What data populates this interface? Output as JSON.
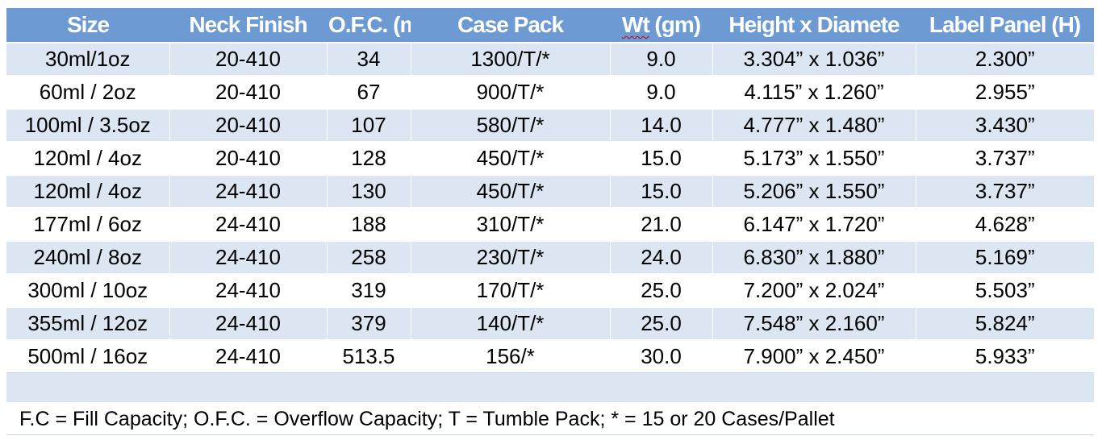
{
  "table": {
    "headers": {
      "size": "Size",
      "neck_finish": "Neck Finish",
      "ofc": "O.F.C. (m",
      "case_pack": "Case Pack",
      "wt_a": "Wt",
      "wt_b": " (gm)",
      "height_diameter": "Height x Diamete",
      "label_panel": "Label Panel (H)"
    },
    "rows": [
      {
        "size": "30ml/1oz",
        "neck": "20-410",
        "ofc": "34",
        "case_pack": "1300/T/*",
        "wt": "9.0",
        "dims": "3.304” x 1.036”",
        "label": "2.300”"
      },
      {
        "size": "60ml / 2oz",
        "neck": "20-410",
        "ofc": "67",
        "case_pack": "900/T/*",
        "wt": "9.0",
        "dims": "4.115” x 1.260”",
        "label": "2.955”"
      },
      {
        "size": "100ml / 3.5oz",
        "neck": "20-410",
        "ofc": "107",
        "case_pack": "580/T/*",
        "wt": "14.0",
        "dims": "4.777” x 1.480”",
        "label": "3.430”"
      },
      {
        "size": "120ml / 4oz",
        "neck": "20-410",
        "ofc": "128",
        "case_pack": "450/T/*",
        "wt": "15.0",
        "dims": "5.173” x 1.550”",
        "label": "3.737”"
      },
      {
        "size": "120ml / 4oz",
        "neck": "24-410",
        "ofc": "130",
        "case_pack": "450/T/*",
        "wt": "15.0",
        "dims": "5.206” x 1.550”",
        "label": "3.737”"
      },
      {
        "size": "177ml / 6oz",
        "neck": "24-410",
        "ofc": "188",
        "case_pack": "310/T/*",
        "wt": "21.0",
        "dims": "6.147” x 1.720”",
        "label": "4.628”"
      },
      {
        "size": "240ml / 8oz",
        "neck": "24-410",
        "ofc": "258",
        "case_pack": "230/T/*",
        "wt": "24.0",
        "dims": "6.830” x 1.880”",
        "label": "5.169”"
      },
      {
        "size": "300ml / 10oz",
        "neck": "24-410",
        "ofc": "319",
        "case_pack": "170/T/*",
        "wt": "25.0",
        "dims": "7.200” x 2.024”",
        "label": "5.503”"
      },
      {
        "size": "355ml / 12oz",
        "neck": "24-410",
        "ofc": "379",
        "case_pack": "140/T/*",
        "wt": "25.0",
        "dims": "7.548” x 2.160”",
        "label": "5.824”"
      },
      {
        "size": "500ml / 16oz",
        "neck": "24-410",
        "ofc": "513.5",
        "case_pack": "156/*",
        "wt": "30.0",
        "dims": "7.900” x 2.450”",
        "label": "5.933”"
      }
    ],
    "footnote": "F.C = Fill Capacity; O.F.C. = Overflow Capacity; T = Tumble Pack; * = 15 or 20 Cases/Pallet"
  },
  "colors": {
    "header_bg": "#6d9ad3",
    "band_bg": "#dce6f2",
    "header_text": "#ffffff"
  }
}
